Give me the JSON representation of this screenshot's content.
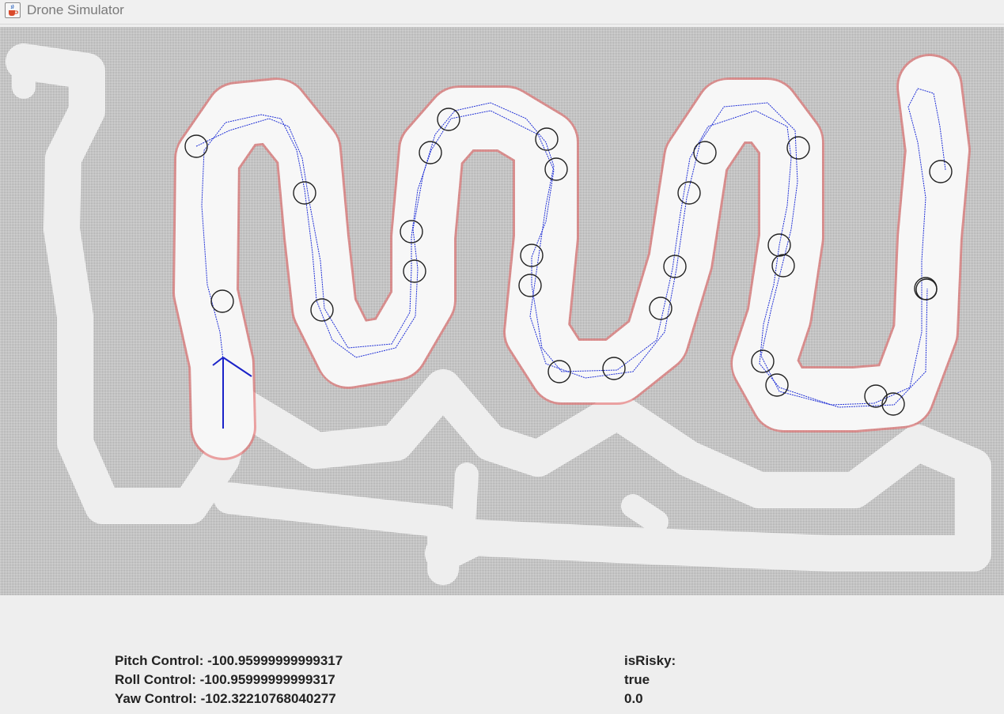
{
  "window": {
    "title": "Drone Simulator",
    "icon": "java-cup-icon"
  },
  "controls": {
    "pitch": "Pitch Control: -100.95999999999317",
    "roll": "Roll Control: -100.95999999999317",
    "yaw": "Yaw Control: -102.32210768040277"
  },
  "status": {
    "risky_label": "isRisky:",
    "risky_value": "true",
    "value": "0.0"
  },
  "colors": {
    "wall": "#a8a8a8",
    "free_space": "#eeeeee",
    "explored": "#f7f7f7",
    "path": "#1f2fd6",
    "edge": "#e53030",
    "waypoint": "#222222"
  }
}
